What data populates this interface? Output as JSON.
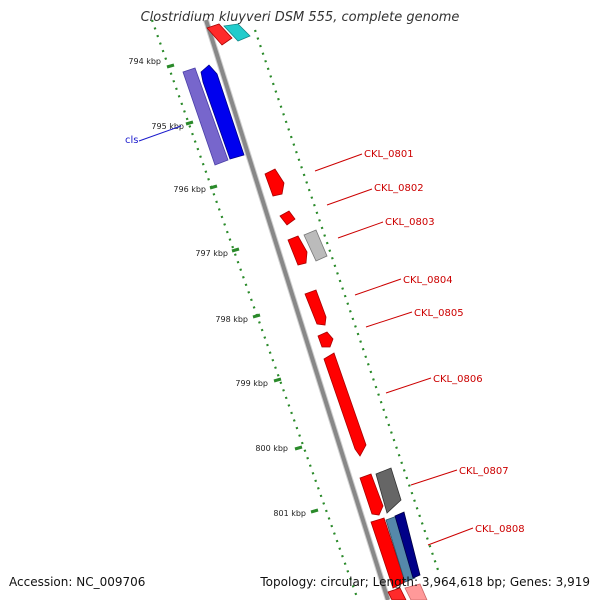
{
  "title": "Clostridium kluyveri DSM 555, complete genome",
  "footer": {
    "accession": "Accession: NC_009706",
    "summary": "Topology: circular; Length: 3,964,618 bp; Genes: 3,919"
  },
  "ticks": [
    "794 kbp",
    "795 kbp",
    "796 kbp",
    "797 kbp",
    "798 kbp",
    "799 kbp",
    "800 kbp",
    "801 kbp"
  ],
  "genes": [
    {
      "label": "cls",
      "color": "#1a1acc"
    },
    {
      "label": "CKL_0801",
      "color": "#cc0000"
    },
    {
      "label": "CKL_0802",
      "color": "#cc0000"
    },
    {
      "label": "CKL_0803",
      "color": "#cc0000"
    },
    {
      "label": "CKL_0804",
      "color": "#cc0000"
    },
    {
      "label": "CKL_0805",
      "color": "#cc0000"
    },
    {
      "label": "CKL_0806",
      "color": "#cc0000"
    },
    {
      "label": "CKL_0807",
      "color": "#cc0000"
    },
    {
      "label": "CKL_0808",
      "color": "#cc0000"
    }
  ],
  "colors": {
    "backbone": "#888888",
    "tick": "#2a8a2a",
    "cds_red": "#ff0000",
    "cds_blue": "#0000ee",
    "cds_slate": "#7766cc",
    "cds_cyan": "#22cccc",
    "cds_gray": "#999999",
    "cds_navy": "#000088",
    "cds_steel": "#5588aa"
  }
}
